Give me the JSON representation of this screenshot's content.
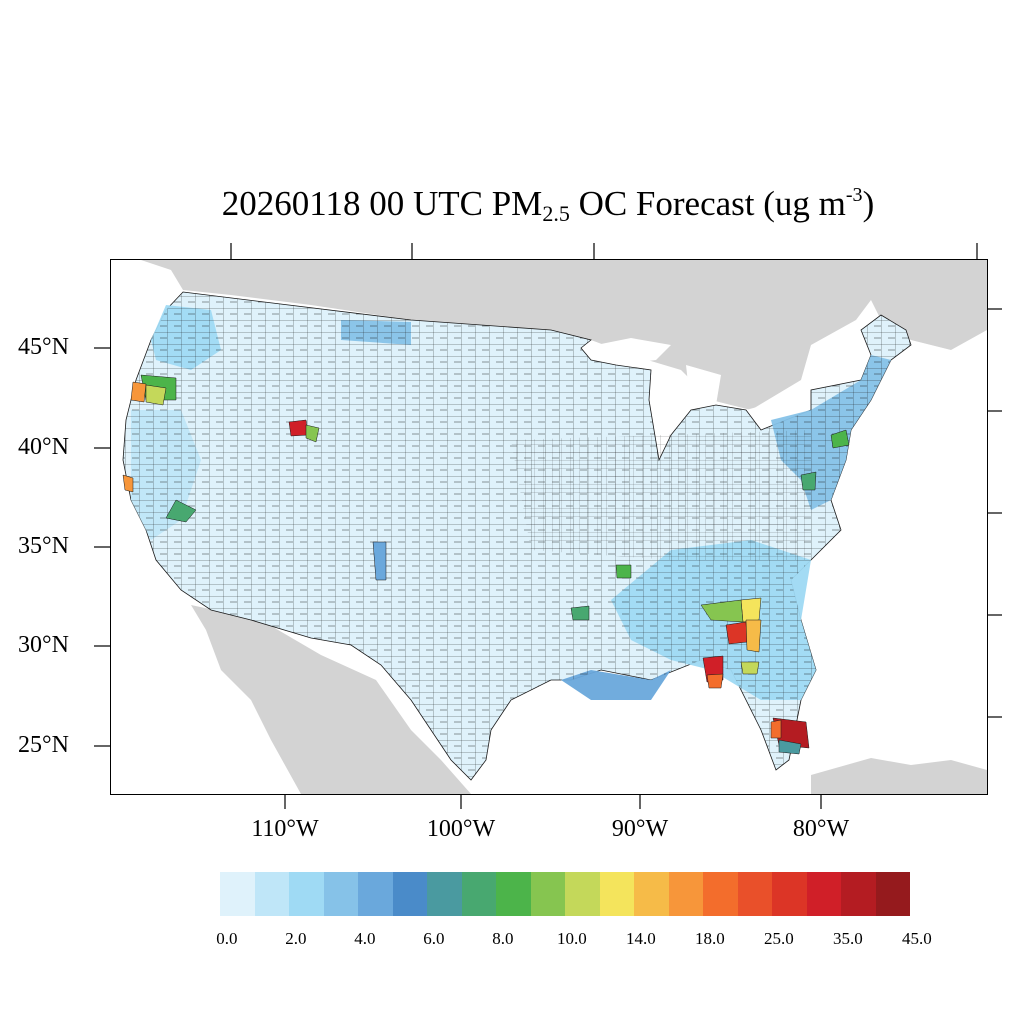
{
  "title": {
    "prefix": "20260118 00 UTC PM",
    "subscript": "2.5",
    "middle": " OC Forecast (ug m",
    "superscript": "-3",
    "suffix": ")"
  },
  "map": {
    "latitude_labels": [
      "45°N",
      "40°N",
      "35°N",
      "30°N",
      "25°N"
    ],
    "longitude_labels": [
      "110°W",
      "100°W",
      "90°W",
      "80°W"
    ],
    "colors": {
      "land_outside": "#d3d3d3",
      "water": "#ffffff",
      "base_fill": "#dff2fb",
      "county_lines": "#1a1a1a"
    },
    "hotspots_legend_note": ""
  },
  "colorbar": {
    "colors": [
      "#dff2fb",
      "#bfe6f8",
      "#9fdaf4",
      "#86c2e8",
      "#6aa8dc",
      "#4a8bc9",
      "#4a9aa0",
      "#48a870",
      "#4cb44a",
      "#86c550",
      "#c4d85a",
      "#f4e45c",
      "#f6bb48",
      "#f7963a",
      "#f36d2c",
      "#e9502a",
      "#dc3526",
      "#d01f28",
      "#b41c22",
      "#951a1d"
    ],
    "tick_labels": [
      "0.0",
      "2.0",
      "4.0",
      "6.0",
      "8.0",
      "10.0",
      "14.0",
      "18.0",
      "25.0",
      "35.0",
      "45.0"
    ]
  }
}
